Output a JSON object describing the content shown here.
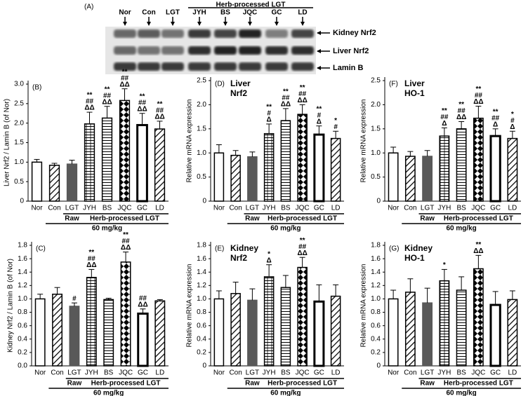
{
  "blot": {
    "panel": "(A)",
    "lanes": [
      "Nor",
      "Con",
      "LGT",
      "JYH",
      "BS",
      "JQC",
      "GC",
      "LD"
    ],
    "group": "Herb-processed LGT",
    "rows": [
      "Kidney Nrf2",
      "Liver Nrf2",
      "Lamin B"
    ]
  },
  "chart_data": [
    {
      "type": "bar",
      "panel": "(B)",
      "ylabel": "Liver Nrf2 / Lamin B (of Nor)",
      "categories": [
        "Nor",
        "Con",
        "LGT",
        "JYH",
        "BS",
        "JQC",
        "GC",
        "LD"
      ],
      "values": [
        1.0,
        0.92,
        0.95,
        1.98,
        2.13,
        2.58,
        1.95,
        1.85
      ],
      "errors": [
        0.07,
        0.05,
        0.1,
        0.3,
        0.3,
        0.3,
        0.3,
        0.2
      ],
      "annotations": [
        null,
        null,
        null,
        [
          "**",
          "##",
          "ΔΔ"
        ],
        [
          "**",
          "##",
          "ΔΔ"
        ],
        [
          "**",
          "##",
          "ΔΔ"
        ],
        [
          "**",
          "##",
          "ΔΔ"
        ],
        [
          "**",
          "##",
          "ΔΔ"
        ]
      ],
      "patterns": [
        "none",
        "diag",
        "solid",
        "hgrid",
        "hlines",
        "diamond",
        "thick",
        "diag"
      ],
      "groups": [
        "Raw",
        "Herb-processed LGT",
        "60 mg/kg"
      ],
      "ylim": [
        0,
        3
      ],
      "yticks": [
        0,
        0.5,
        {
          "value": 1,
          "label": "1.0"
        },
        1.5,
        {
          "value": 2,
          "label": "2.0"
        },
        2.5,
        {
          "value": 3,
          "label": "3.0"
        }
      ]
    },
    {
      "type": "bar",
      "panel": "(D)",
      "title": [
        "Liver",
        "Nrf2"
      ],
      "ylabel": "Relative mRNA expression",
      "categories": [
        "Nor",
        "Con",
        "LGT",
        "JYH",
        "BS",
        "JQC",
        "GC",
        "LD"
      ],
      "values": [
        1.0,
        0.95,
        0.92,
        1.4,
        1.67,
        1.8,
        1.38,
        1.3
      ],
      "errors": [
        0.17,
        0.1,
        0.1,
        0.2,
        0.25,
        0.2,
        0.18,
        0.15
      ],
      "annotations": [
        null,
        null,
        null,
        [
          "**",
          "#",
          "Δ"
        ],
        [
          "**",
          "##",
          "ΔΔ"
        ],
        [
          "**",
          "##",
          "ΔΔ"
        ],
        [
          "**",
          "#",
          "Δ"
        ],
        [
          "*",
          "#"
        ]
      ],
      "patterns": [
        "none",
        "diag",
        "solid",
        "hgrid",
        "hlines",
        "diamond",
        "thick",
        "diag"
      ],
      "groups": [
        "Raw",
        "Herb-processed LGT",
        "60 mg/kg"
      ],
      "ylim": [
        0,
        2.5
      ],
      "yticks": [
        0,
        0.5,
        {
          "value": 1,
          "label": "1.0"
        },
        1.5,
        {
          "value": 2,
          "label": "2.0"
        },
        2.5
      ]
    },
    {
      "type": "bar",
      "panel": "(F)",
      "title": [
        "Liver",
        "HO-1"
      ],
      "ylabel": "Relative mRNA expression",
      "categories": [
        "Nor",
        "Con",
        "LGT",
        "JYH",
        "BS",
        "JQC",
        "GC",
        "LD"
      ],
      "values": [
        1.0,
        0.93,
        0.93,
        1.35,
        1.5,
        1.72,
        1.35,
        1.3
      ],
      "errors": [
        0.12,
        0.1,
        0.12,
        0.17,
        0.15,
        0.25,
        0.15,
        0.15
      ],
      "annotations": [
        null,
        null,
        null,
        [
          "**",
          "##",
          "Δ"
        ],
        [
          "**",
          "##",
          "ΔΔ"
        ],
        [
          "**",
          "##",
          "ΔΔ"
        ],
        [
          "**",
          "##",
          "Δ"
        ],
        [
          "*",
          "#",
          "Δ"
        ]
      ],
      "patterns": [
        "none",
        "diag",
        "solid",
        "hgrid",
        "hlines",
        "diamond",
        "thick",
        "diag"
      ],
      "groups": [
        "Raw",
        "Herb-processed LGT",
        "60 mg/kg"
      ],
      "ylim": [
        0,
        2.5
      ],
      "yticks": [
        0,
        0.5,
        {
          "value": 1,
          "label": "1.0"
        },
        1.5,
        {
          "value": 2,
          "label": "2.0"
        },
        2.5
      ]
    },
    {
      "type": "bar",
      "panel": "(C)",
      "ylabel": "Kidney Nrf2 / Lamin B (of Nor)",
      "categories": [
        "Nor",
        "Con",
        "LGT",
        "JYH",
        "BS",
        "JQC",
        "GC",
        "LD"
      ],
      "values": [
        1.0,
        1.07,
        0.89,
        1.32,
        0.99,
        1.55,
        0.78,
        0.97
      ],
      "errors": [
        0.07,
        0.1,
        0.05,
        0.12,
        0.02,
        0.15,
        0.07,
        0.02
      ],
      "annotations": [
        null,
        null,
        [
          "#"
        ],
        [
          "**",
          "##",
          "ΔΔ"
        ],
        null,
        [
          "**",
          "##",
          "ΔΔ"
        ],
        [
          "##",
          "ΔΔ"
        ],
        null
      ],
      "patterns": [
        "none",
        "diag",
        "solid",
        "hgrid",
        "hlines",
        "diamond",
        "thick",
        "diag"
      ],
      "groups": [
        "Raw",
        "Herb-processed LGT",
        "60 mg/kg"
      ],
      "ylim": [
        0,
        1.8
      ],
      "yticks": [
        {
          "value": 0,
          "label": "0.0"
        },
        0.2,
        0.4,
        0.6,
        0.8,
        {
          "value": 1,
          "label": "1.0"
        },
        1.2,
        1.4,
        1.6,
        1.8
      ]
    },
    {
      "type": "bar",
      "panel": "(E)",
      "title": [
        "Kidney",
        "Nrf2"
      ],
      "ylabel": "Relative mRNA expression",
      "categories": [
        "Nor",
        "Con",
        "LGT",
        "JYH",
        "BS",
        "JQC",
        "GC",
        "LD"
      ],
      "values": [
        1.0,
        1.08,
        0.98,
        1.33,
        1.17,
        1.47,
        0.96,
        1.04
      ],
      "errors": [
        0.12,
        0.17,
        0.17,
        0.18,
        0.18,
        0.15,
        0.25,
        0.17
      ],
      "annotations": [
        null,
        null,
        null,
        [
          "*",
          "Δ"
        ],
        null,
        [
          "**",
          "##",
          "ΔΔ"
        ],
        null,
        null
      ],
      "patterns": [
        "none",
        "diag",
        "solid",
        "hgrid",
        "hlines",
        "diamond",
        "thick",
        "diag"
      ],
      "groups": [
        "Raw",
        "Herb-processed LGT",
        "60 mg/kg"
      ],
      "ylim": [
        0,
        1.8
      ],
      "yticks": [
        0,
        0.2,
        0.4,
        0.6,
        0.8,
        {
          "value": 1,
          "label": "1.0"
        },
        1.2,
        1.4,
        1.6,
        1.8
      ]
    },
    {
      "type": "bar",
      "panel": "(G)",
      "title": [
        "Kidney",
        "HO-1"
      ],
      "ylabel": "Relative mRNA expression",
      "categories": [
        "Nor",
        "Con",
        "LGT",
        "JYH",
        "BS",
        "JQC",
        "GC",
        "LD"
      ],
      "values": [
        1.0,
        1.1,
        0.94,
        1.27,
        1.13,
        1.45,
        0.91,
        0.99
      ],
      "errors": [
        0.13,
        0.2,
        0.22,
        0.17,
        0.2,
        0.2,
        0.2,
        0.13
      ],
      "annotations": [
        null,
        null,
        null,
        [
          "*"
        ],
        null,
        [
          "**",
          "ΔΔ"
        ],
        null,
        null
      ],
      "patterns": [
        "none",
        "diag",
        "solid",
        "hgrid",
        "hlines",
        "diamond",
        "thick",
        "diag"
      ],
      "groups": [
        "Raw",
        "Herb-processed LGT",
        "60 mg/kg"
      ],
      "ylim": [
        0,
        1.8
      ],
      "yticks": [
        0,
        0.2,
        0.4,
        0.6,
        0.8,
        {
          "value": 1,
          "label": "1.0"
        },
        1.2,
        1.4,
        1.6,
        1.8
      ]
    }
  ]
}
